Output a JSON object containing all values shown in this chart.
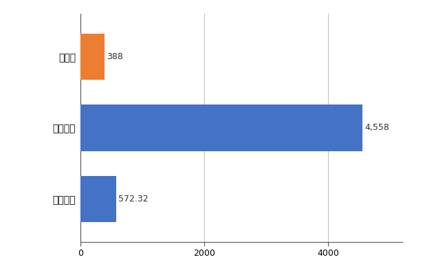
{
  "categories": [
    "全国平均",
    "全国最大",
    "栃木県"
  ],
  "values": [
    572.32,
    4558,
    388
  ],
  "bar_colors": [
    "#4472c4",
    "#4472c4",
    "#ed7d31"
  ],
  "value_labels": [
    "572.32",
    "4,558",
    "388"
  ],
  "xlim": [
    0,
    5200
  ],
  "xticks": [
    0,
    2000,
    4000
  ],
  "background_color": "#ffffff",
  "grid_color": "#c0c0c0",
  "bar_height": 0.65,
  "label_fontsize": 10,
  "tick_fontsize": 9,
  "value_fontsize": 9
}
